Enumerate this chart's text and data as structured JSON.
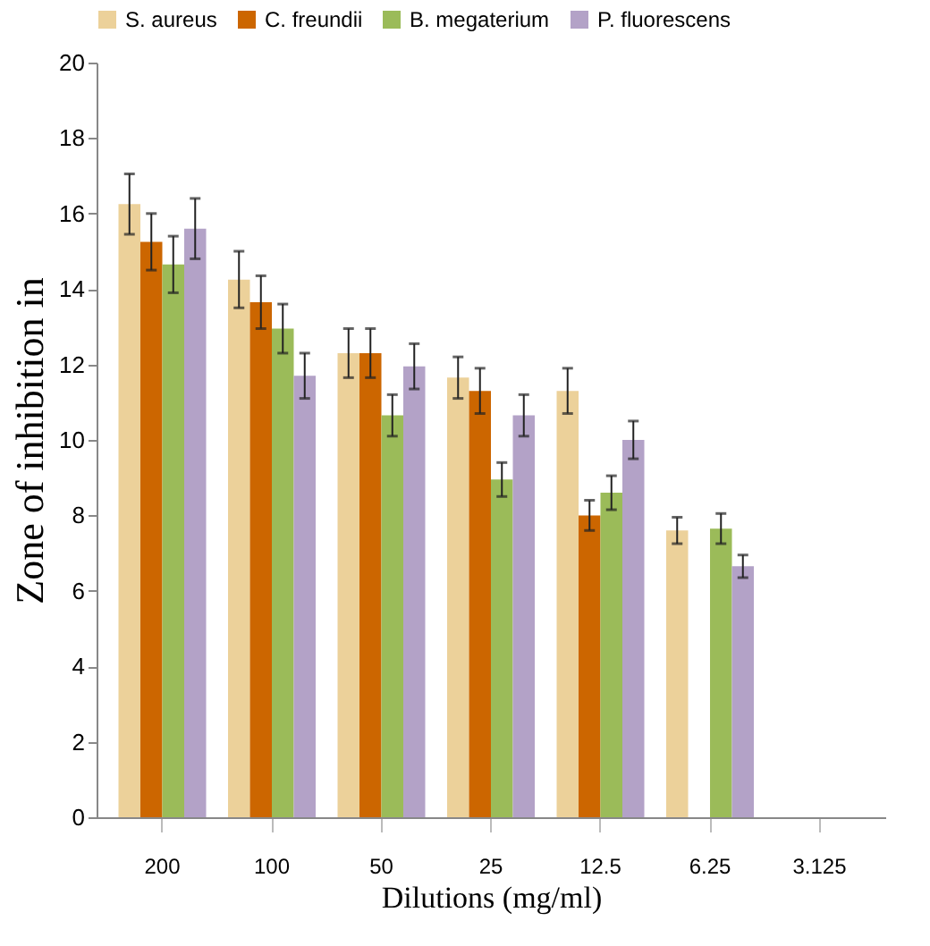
{
  "chart_data": {
    "type": "bar",
    "xlabel": "Dilutions (mg/ml)",
    "ylabel": "Zone of inhibition in",
    "categories": [
      "200",
      "100",
      "50",
      "25",
      "12.5",
      "6.25",
      "3.125"
    ],
    "series": [
      {
        "name": "S. aureus",
        "color": "#ecd19a",
        "values": [
          16.25,
          14.25,
          12.3,
          11.65,
          11.3,
          7.6,
          null
        ],
        "errors": [
          0.8,
          0.75,
          0.65,
          0.55,
          0.6,
          0.35,
          null
        ]
      },
      {
        "name": "C. freundii",
        "color": "#cc6600",
        "values": [
          15.25,
          13.65,
          12.3,
          11.3,
          8.0,
          null,
          null
        ],
        "errors": [
          0.75,
          0.7,
          0.65,
          0.6,
          0.4,
          null,
          null
        ]
      },
      {
        "name": "B. megaterium",
        "color": "#9bbb59",
        "values": [
          14.65,
          12.95,
          10.65,
          8.95,
          8.6,
          7.65,
          null
        ],
        "errors": [
          0.75,
          0.65,
          0.55,
          0.45,
          0.45,
          0.4,
          null
        ]
      },
      {
        "name": "P. fluorescens",
        "color": "#b3a2c7",
        "values": [
          15.6,
          11.7,
          11.95,
          10.65,
          10.0,
          6.65,
          null
        ],
        "errors": [
          0.8,
          0.6,
          0.6,
          0.55,
          0.5,
          0.3,
          null
        ]
      }
    ],
    "ylim": [
      0,
      20
    ],
    "yticks": [
      0,
      2,
      4,
      6,
      8,
      10,
      12,
      14,
      16,
      18,
      20
    ],
    "grid": false,
    "legend": "top"
  }
}
